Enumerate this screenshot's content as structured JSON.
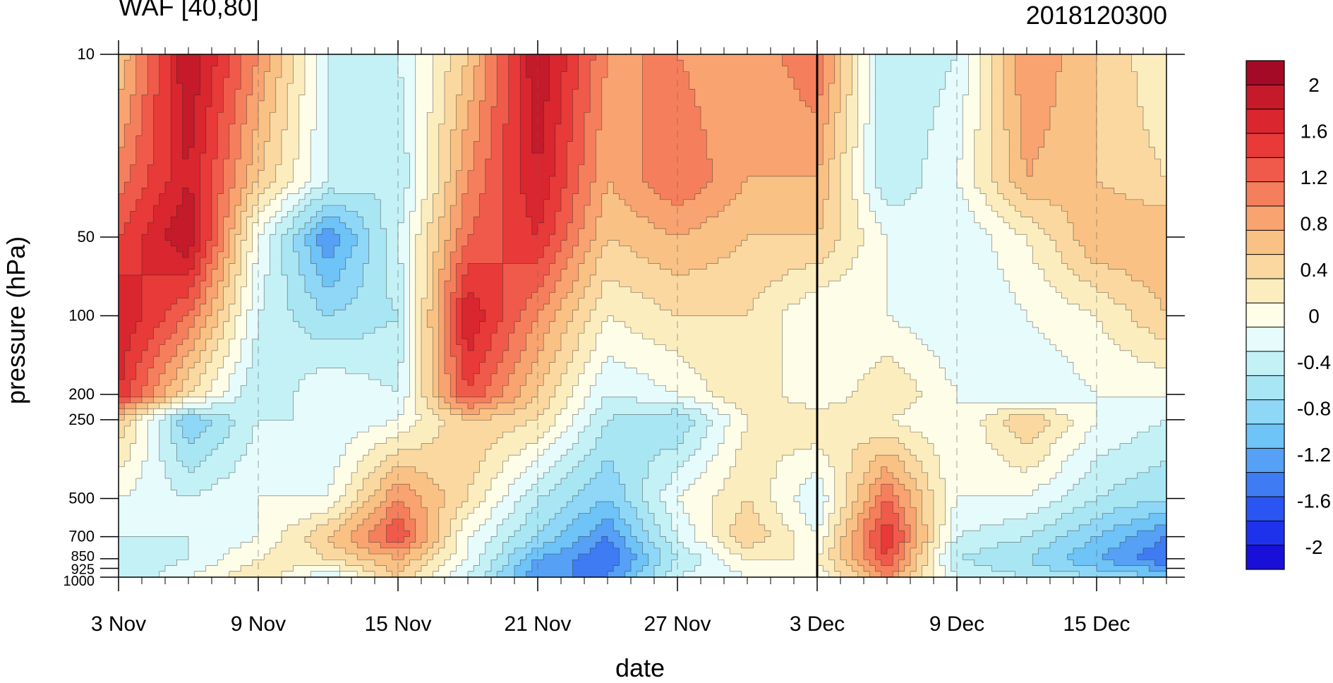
{
  "chart_data": {
    "type": "heatmap",
    "title": "WAF [40,80]",
    "stamp": "2018120300",
    "xlabel": "date",
    "ylabel": "pressure (hPa)",
    "x_range": [
      "2018-11-03",
      "2018-12-18"
    ],
    "x_ticks": [
      "3 Nov",
      "9 Nov",
      "15 Nov",
      "21 Nov",
      "27 Nov",
      "3 Dec",
      "9 Dec",
      "15 Dec"
    ],
    "x_tick_dates": [
      "2018-11-03",
      "2018-11-09",
      "2018-11-15",
      "2018-11-21",
      "2018-11-27",
      "2018-12-03",
      "2018-12-09",
      "2018-12-15"
    ],
    "y_scale": "log",
    "y_range": [
      1000,
      10
    ],
    "y_ticks": [
      10,
      50,
      100,
      200,
      250,
      500,
      700,
      850,
      925,
      1000
    ],
    "y_tick_labels": [
      "10",
      "50",
      "100",
      "200",
      "250",
      "500",
      "700",
      "850",
      "925",
      "1000"
    ],
    "marker_line_date": "2018-12-03",
    "colorbar": {
      "levels": [
        -2.2,
        -2.0,
        -1.8,
        -1.6,
        -1.4,
        -1.2,
        -1.0,
        -0.8,
        -0.6,
        -0.4,
        -0.2,
        0.0,
        0.2,
        0.4,
        0.6,
        0.8,
        1.0,
        1.2,
        1.4,
        1.6,
        1.8,
        2.0,
        2.2
      ],
      "labels": [
        "2",
        "1.6",
        "1.2",
        "0.8",
        "0.4",
        "0",
        "-0.4",
        "-0.8",
        "-1.2",
        "-1.6",
        "-2"
      ],
      "label_values": [
        2,
        1.6,
        1.2,
        0.8,
        0.4,
        0,
        -0.4,
        -0.8,
        -1.2,
        -1.6,
        -2
      ],
      "colors": [
        "#1a0fd8",
        "#1e32ec",
        "#2a55f2",
        "#3f7bf2",
        "#56a0f5",
        "#6ec3f7",
        "#8fd7f7",
        "#a9e6f3",
        "#c3f1f6",
        "#e6fbfb",
        "#fefde8",
        "#fbedbe",
        "#fbd8a0",
        "#f9c184",
        "#f8a370",
        "#f57f5c",
        "#f05a4a",
        "#e83a38",
        "#d9262f",
        "#c41a2a",
        "#a40a25"
      ]
    },
    "grid": {
      "dates": [
        "2018-11-03",
        "2018-11-06",
        "2018-11-09",
        "2018-11-12",
        "2018-11-15",
        "2018-11-18",
        "2018-11-21",
        "2018-11-24",
        "2018-11-27",
        "2018-11-30",
        "2018-12-03",
        "2018-12-06",
        "2018-12-09",
        "2018-12-12",
        "2018-12-15",
        "2018-12-18"
      ],
      "levels_hPa": [
        10,
        30,
        50,
        100,
        200,
        250,
        500,
        700,
        850,
        1000
      ],
      "values": [
        [
          0.4,
          1.8,
          0.8,
          -0.4,
          -0.4,
          0.4,
          1.8,
          0.8,
          0.8,
          0.6,
          1.0,
          -0.6,
          -0.4,
          0.8,
          0.4,
          0.0
        ],
        [
          0.9,
          1.6,
          0.4,
          -0.4,
          -0.6,
          0.8,
          1.6,
          0.6,
          1.0,
          0.6,
          0.6,
          -0.6,
          -0.2,
          0.6,
          0.4,
          0.2
        ],
        [
          1.2,
          1.8,
          -0.2,
          -1.4,
          -0.4,
          1.0,
          1.4,
          0.4,
          0.6,
          0.4,
          0.4,
          -0.2,
          -0.4,
          0.0,
          0.6,
          0.6
        ],
        [
          1.6,
          1.0,
          -0.4,
          -0.8,
          -0.6,
          1.6,
          0.8,
          0.0,
          0.2,
          0.2,
          -0.2,
          -0.2,
          -0.4,
          -0.2,
          0.0,
          0.4
        ],
        [
          1.4,
          0.2,
          -0.6,
          -0.2,
          -0.4,
          1.2,
          0.4,
          -0.4,
          -0.2,
          0.2,
          -0.2,
          0.2,
          -0.2,
          -0.4,
          -0.2,
          -0.2
        ],
        [
          0.4,
          -1.0,
          -0.4,
          -0.4,
          -0.2,
          0.4,
          0.2,
          -0.6,
          -0.8,
          0.0,
          0.2,
          0.0,
          -0.2,
          0.4,
          -0.2,
          -0.4
        ],
        [
          -0.2,
          -0.4,
          -0.2,
          -0.2,
          0.8,
          0.2,
          -0.6,
          -1.0,
          -0.2,
          0.2,
          -0.4,
          1.0,
          -0.2,
          -0.2,
          -0.6,
          -0.8
        ],
        [
          -0.4,
          -0.4,
          -0.2,
          0.4,
          1.2,
          -0.2,
          -0.8,
          -1.4,
          -0.4,
          0.4,
          -0.2,
          1.4,
          -0.4,
          -0.6,
          -1.0,
          -1.4
        ],
        [
          -0.6,
          -0.4,
          0.0,
          0.2,
          0.6,
          -0.2,
          -1.2,
          -1.6,
          -0.6,
          0.0,
          0.0,
          1.2,
          -0.6,
          -0.8,
          -1.2,
          -1.6
        ],
        [
          -0.6,
          -0.2,
          0.2,
          -0.4,
          0.4,
          -0.4,
          -1.4,
          -1.4,
          -0.4,
          -0.2,
          -0.2,
          0.8,
          -0.4,
          -0.6,
          -0.8,
          -1.0
        ]
      ]
    }
  }
}
